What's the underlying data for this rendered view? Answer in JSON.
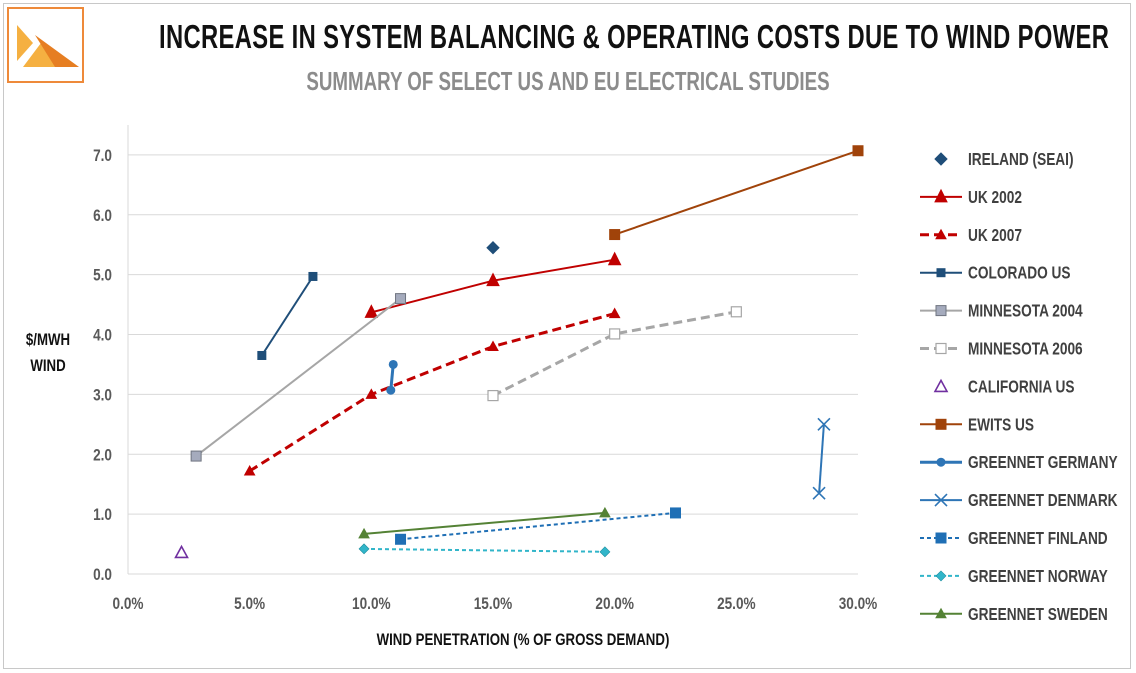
{
  "header": {
    "title": "INCREASE IN SYSTEM BALANCING & OPERATING COSTS DUE TO WIND POWER",
    "subtitle": "SUMMARY OF SELECT US AND EU ELECTRICAL STUDIES",
    "logo_colors": {
      "left": "#f5b041",
      "right": "#e67e22"
    }
  },
  "chart_data": {
    "type": "scatter",
    "title": "INCREASE IN SYSTEM BALANCING & OPERATING COSTS DUE TO WIND POWER",
    "subtitle": "SUMMARY OF SELECT US AND EU ELECTRICAL STUDIES",
    "xlabel": "WIND PENETRATION (% OF GROSS DEMAND)",
    "ylabel": "$/MWH WIND",
    "xlim": [
      0,
      0.3
    ],
    "ylim": [
      0,
      7.5
    ],
    "xticks": [
      "0.0%",
      "5.0%",
      "10.0%",
      "15.0%",
      "20.0%",
      "25.0%",
      "30.0%"
    ],
    "xtick_values": [
      0,
      0.05,
      0.1,
      0.15,
      0.2,
      0.25,
      0.3
    ],
    "yticks": [
      "0.0",
      "1.0",
      "2.0",
      "3.0",
      "4.0",
      "5.0",
      "6.0",
      "7.0"
    ],
    "ytick_values": [
      0,
      1,
      2,
      3,
      4,
      5,
      6,
      7
    ],
    "grid": "horizontal",
    "legend_position": "right",
    "series": [
      {
        "name": "IRELAND (SEAI)",
        "color": "#1f4e79",
        "line": "none",
        "marker": "diamond",
        "fill": "filled",
        "points": [
          [
            0.15,
            5.45
          ]
        ]
      },
      {
        "name": "UK 2002",
        "color": "#c00000",
        "line": "solid",
        "marker": "triangle",
        "fill": "filled",
        "points": [
          [
            0.1,
            4.37
          ],
          [
            0.15,
            4.9
          ],
          [
            0.2,
            5.25
          ]
        ]
      },
      {
        "name": "UK 2007",
        "color": "#c00000",
        "line": "dash",
        "marker": "triangle-small",
        "fill": "filled",
        "points": [
          [
            0.05,
            1.72
          ],
          [
            0.1,
            3.0
          ],
          [
            0.15,
            3.8
          ],
          [
            0.2,
            4.35
          ]
        ]
      },
      {
        "name": "COLORADO US",
        "color": "#1f4e79",
        "line": "solid",
        "marker": "square-small",
        "fill": "filled",
        "points": [
          [
            0.055,
            3.65
          ],
          [
            0.076,
            4.97
          ]
        ]
      },
      {
        "name": "MINNESOTA 2004",
        "color": "#a6a6a6",
        "line": "solid",
        "marker": "square",
        "fill": "gray",
        "points": [
          [
            0.028,
            1.97
          ],
          [
            0.112,
            4.6
          ]
        ]
      },
      {
        "name": "MINNESOTA 2006",
        "color": "#a6a6a6",
        "line": "dash",
        "marker": "square-open",
        "fill": "open",
        "points": [
          [
            0.15,
            2.98
          ],
          [
            0.2,
            4.01
          ],
          [
            0.25,
            4.38
          ]
        ]
      },
      {
        "name": "CALIFORNIA US",
        "color": "#7030a0",
        "line": "none",
        "marker": "triangle-open",
        "fill": "open",
        "points": [
          [
            0.022,
            0.36
          ]
        ]
      },
      {
        "name": "EWITS US",
        "color": "#a0430a",
        "line": "solid",
        "marker": "square",
        "fill": "filled",
        "points": [
          [
            0.2,
            5.67
          ],
          [
            0.3,
            7.07
          ]
        ]
      },
      {
        "name": "GREENNET GERMANY",
        "color": "#2e75b6",
        "line": "solid-thick",
        "marker": "circle",
        "fill": "filled",
        "points": [
          [
            0.108,
            3.07
          ],
          [
            0.109,
            3.5
          ]
        ]
      },
      {
        "name": "GREENNET DENMARK",
        "color": "#2e75b6",
        "line": "solid",
        "marker": "x",
        "fill": "none",
        "points": [
          [
            0.284,
            1.35
          ],
          [
            0.286,
            2.5
          ]
        ]
      },
      {
        "name": "GREENNET FINLAND",
        "color": "#1f6fb5",
        "line": "short-dash",
        "marker": "square",
        "fill": "filled",
        "points": [
          [
            0.112,
            0.58
          ],
          [
            0.225,
            1.02
          ]
        ]
      },
      {
        "name": "GREENNET NORWAY",
        "color": "#31b5c9",
        "line": "short-dash",
        "marker": "diamond-small",
        "fill": "filled",
        "points": [
          [
            0.097,
            0.42
          ],
          [
            0.196,
            0.37
          ]
        ]
      },
      {
        "name": "GREENNET SWEDEN",
        "color": "#548235",
        "line": "solid",
        "marker": "triangle-small",
        "fill": "filled",
        "points": [
          [
            0.097,
            0.67
          ],
          [
            0.196,
            1.02
          ]
        ]
      }
    ]
  }
}
